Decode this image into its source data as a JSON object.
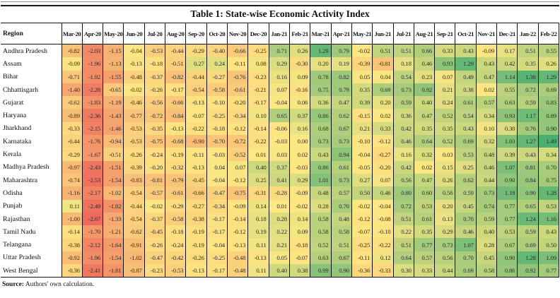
{
  "title": "Table 1: State-wise Economic Activity Index",
  "table": {
    "region_header": "Region"
  },
  "footer": {
    "source_label": "Source:",
    "source_text": " Authors' own calculation."
  },
  "heatmap": {
    "min_color": "#EE6A5C",
    "mid_color": "#FEE883",
    "max_color": "#4CAF72",
    "text_color": "#2c2c2c",
    "border_color": "#111111"
  },
  "chart_data": {
    "type": "heatmap",
    "title": "Table 1: State-wise Economic Activity Index",
    "value_range": [
      -2.67,
      1.49
    ],
    "x_categories": [
      "Mar-20",
      "Apr-20",
      "May-20",
      "Jun-20",
      "Jul-20",
      "Aug-20",
      "Sep-20",
      "Oct-20",
      "Nov-20",
      "Dec-20",
      "Jan-21",
      "Feb-21",
      "Mar-21",
      "Apr-21",
      "May-21",
      "Jun-21",
      "Jul-21",
      "Aug-21",
      "Sep-21",
      "Oct-21",
      "Nov-21",
      "Dec-21",
      "Jan-22",
      "Feb-22"
    ],
    "y_categories": [
      "Andhra Pradesh",
      "Assam",
      "Bihar",
      "Chhattisgarh",
      "Gujarat",
      "Haryana",
      "Jharkhand",
      "Karnataka",
      "Kerala",
      "Madhya Pradesh",
      "Maharashtra",
      "Odisha",
      "Punjab",
      "Rajasthan",
      "Tamil Nadu",
      "Telangana",
      "Uttar Pradesh",
      "West Bengal"
    ],
    "series": [
      {
        "region": "Andhra Pradesh",
        "values": [
          -0.82,
          -2.03,
          -1.15,
          -0.04,
          -0.53,
          -0.44,
          -0.29,
          -0.4,
          -0.66,
          -0.25,
          0.71,
          0.26,
          1.29,
          0.79,
          -0.02,
          0.51,
          0.51,
          0.66,
          0.33,
          0.43,
          -0.09,
          0.17,
          0.51,
          0.55
        ]
      },
      {
        "region": "Assam",
        "values": [
          -0.09,
          -1.96,
          -1.13,
          -0.13,
          -0.18,
          -0.51,
          0.27,
          0.24,
          -0.11,
          0.08,
          0.29,
          -0.3,
          0.2,
          0.19,
          -0.39,
          -0.81,
          0.18,
          0.46,
          0.93,
          1.29,
          0.43,
          0.42,
          0.35,
          0.26
        ]
      },
      {
        "region": "Bihar",
        "values": [
          -0.71,
          -1.92,
          -1.55,
          -0.48,
          -0.37,
          -0.82,
          -0.44,
          -0.27,
          -0.76,
          -0.23,
          0.16,
          0.09,
          0.78,
          0.82,
          0.05,
          0.04,
          0.54,
          0.23,
          0.07,
          0.49,
          0.47,
          1.14,
          1.38,
          1.29
        ]
      },
      {
        "region": "Chhattisgarh",
        "values": [
          -1.4,
          -2.28,
          -0.65,
          -0.02,
          -0.26,
          -0.17,
          -0.54,
          -0.58,
          -0.61,
          -0.21,
          0.07,
          -0.16,
          0.75,
          0.79,
          0.35,
          0.69,
          0.73,
          0.92,
          0.21,
          0.38,
          0.02,
          0.55,
          0.72,
          0.69
        ]
      },
      {
        "region": "Gujarat",
        "values": [
          -0.62,
          -1.83,
          -1.19,
          -0.46,
          -0.56,
          -0.66,
          -0.13,
          -0.1,
          -0.2,
          -0.17,
          -0.04,
          0.06,
          0.36,
          0.47,
          0.39,
          0.2,
          0.59,
          0.4,
          0.24,
          0.61,
          0.57,
          0.63,
          0.59,
          0.83
        ]
      },
      {
        "region": "Haryana",
        "values": [
          -0.89,
          -2.36,
          -1.43,
          -0.77,
          -0.72,
          -0.84,
          -0.07,
          -0.25,
          -0.34,
          0.1,
          0.65,
          0.37,
          0.86,
          0.62,
          -0.15,
          0.02,
          0.36,
          0.47,
          0.52,
          0.54,
          0.34,
          0.93,
          1.17,
          0.89
        ]
      },
      {
        "region": "Jharkhand",
        "values": [
          -0.33,
          -2.15,
          -1.46,
          -0.53,
          -0.35,
          -0.13,
          -0.22,
          -0.18,
          -0.12,
          -0.14,
          -0.06,
          0.16,
          0.68,
          0.67,
          0.21,
          0.33,
          0.42,
          0.35,
          0.35,
          0.43,
          0.1,
          0.3,
          0.76,
          0.9
        ]
      },
      {
        "region": "Karnataka",
        "values": [
          -0.44,
          -1.76,
          -0.94,
          -0.53,
          -0.75,
          -0.68,
          -0.9,
          -0.7,
          -0.72,
          -0.22,
          -0.03,
          0.0,
          0.73,
          0.73,
          -0.1,
          -0.12,
          0.46,
          0.64,
          0.52,
          0.69,
          0.32,
          1.03,
          1.27,
          1.49
        ]
      },
      {
        "region": "Kerala",
        "values": [
          -0.29,
          -1.67,
          -0.51,
          -0.26,
          -0.24,
          -0.19,
          -0.11,
          -0.03,
          -0.52,
          0.01,
          0.03,
          0.02,
          0.43,
          0.94,
          -0.04,
          -0.27,
          0.16,
          0.32,
          0.03,
          0.53,
          0.48,
          0.39,
          0.43,
          0.34
        ]
      },
      {
        "region": "Madhya Pradesh",
        "values": [
          -0.97,
          -2.43,
          -1.51,
          -0.39,
          -0.2,
          -0.32,
          -0.13,
          0.04,
          0.07,
          0.4,
          0.37,
          -0.03,
          0.86,
          0.61,
          -0.05,
          -0.2,
          0.42,
          0.02,
          0.15,
          0.25,
          0.46,
          1.07,
          0.81,
          0.7
        ]
      },
      {
        "region": "Maharashtra",
        "values": [
          -0.74,
          -2.53,
          -1.54,
          -0.83,
          -0.81,
          -0.79,
          -0.45,
          -0.04,
          -0.12,
          0.25,
          0.41,
          0.29,
          1.01,
          0.73,
          0.27,
          0.07,
          0.56,
          0.47,
          0.26,
          0.62,
          0.44,
          0.9,
          0.84,
          0.75
        ]
      },
      {
        "region": "Odisha",
        "values": [
          -1.16,
          -2.17,
          -1.02,
          -0.54,
          -0.57,
          -0.61,
          -0.66,
          -0.47,
          -0.75,
          -0.31,
          -0.28,
          -0.09,
          0.48,
          0.57,
          0.5,
          0.46,
          0.8,
          0.6,
          0.56,
          0.59,
          0.73,
          1.18,
          0.9,
          1.28
        ]
      },
      {
        "region": "Punjab",
        "values": [
          0.11,
          -2.49,
          -1.82,
          -0.44,
          -0.02,
          -0.29,
          -0.27,
          -0.34,
          -0.09,
          0.14,
          0.01,
          -0.02,
          0.28,
          0.7,
          -0.02,
          -0.04,
          0.72,
          0.53,
          0.2,
          0.45,
          0.74,
          0.77,
          0.65,
          0.53
        ]
      },
      {
        "region": "Rajasthan",
        "values": [
          -1.0,
          -2.67,
          -1.33,
          -0.54,
          -0.37,
          -0.58,
          -0.38,
          -0.17,
          -0.14,
          0.18,
          0.28,
          0.14,
          0.58,
          0.48,
          -0.12,
          -0.08,
          0.51,
          0.61,
          0.13,
          0.7,
          0.59,
          0.77,
          1.24,
          1.16
        ]
      },
      {
        "region": "Tamil Nadu",
        "values": [
          -0.14,
          -1.7,
          -1.21,
          -0.62,
          -0.45,
          -0.18,
          -0.19,
          -0.17,
          -0.12,
          0.19,
          0.22,
          0.09,
          0.58,
          0.58,
          -0.07,
          -0.1,
          0.22,
          0.35,
          0.29,
          0.46,
          0.4,
          0.53,
          0.59,
          0.43
        ]
      },
      {
        "region": "Telangana",
        "values": [
          -0.38,
          -2.12,
          -1.64,
          -0.91,
          -0.26,
          -0.24,
          -0.19,
          -0.04,
          -0.13,
          0.11,
          0.21,
          -0.18,
          0.52,
          0.51,
          -0.25,
          -0.22,
          0.51,
          0.77,
          0.73,
          1.07,
          0.28,
          0.67,
          0.69,
          0.5
        ]
      },
      {
        "region": "Uttar Pradesh",
        "values": [
          -0.92,
          -1.96,
          -1.54,
          -1.02,
          -0.47,
          -0.42,
          -0.26,
          -0.25,
          -0.48,
          -0.13,
          0.05,
          -0.07,
          0.63,
          0.67,
          -0.11,
          0.12,
          0.64,
          0.57,
          0.56,
          0.7,
          0.45,
          0.9,
          1.28,
          1.09
        ]
      },
      {
        "region": "West Bengal",
        "values": [
          -0.36,
          -2.41,
          -1.81,
          -0.87,
          -0.23,
          -0.53,
          -0.13,
          -0.17,
          -0.48,
          0.11,
          0.4,
          0.38,
          0.99,
          0.9,
          -0.36,
          -0.33,
          0.3,
          0.33,
          0.44,
          0.69,
          0.58,
          0.86,
          0.92,
          0.77
        ]
      }
    ]
  }
}
